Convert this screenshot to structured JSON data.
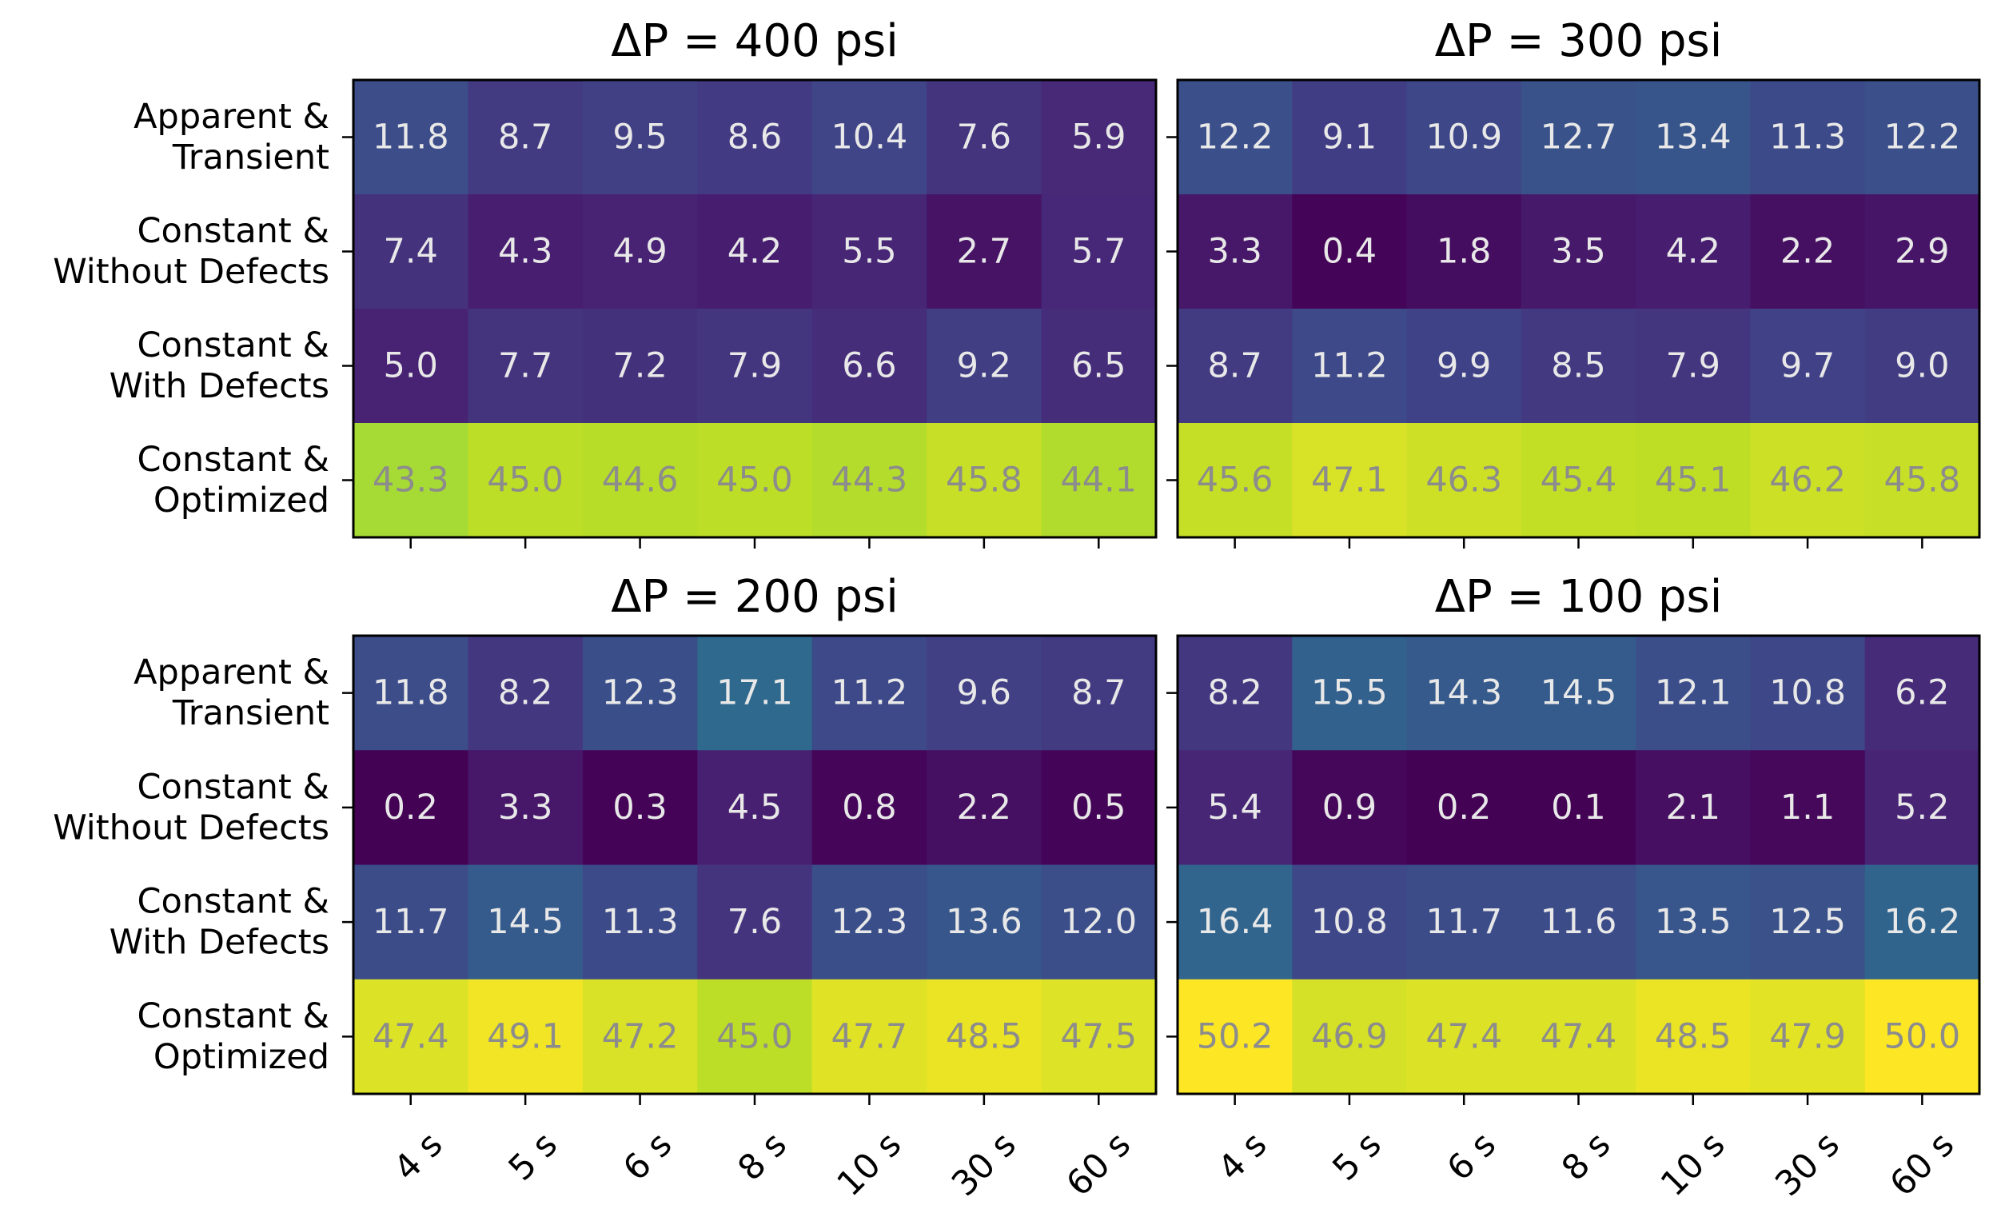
{
  "chart_data": [
    {
      "type": "heatmap",
      "title": "ΔP = 400 psi",
      "rows": [
        "Apparent & Transient",
        "Constant & Without Defects",
        "Constant & With Defects",
        "Constant & Optimized"
      ],
      "row_labels": [
        [
          "Apparent &",
          "Transient"
        ],
        [
          "Constant &",
          "Without Defects"
        ],
        [
          "Constant &",
          "With Defects"
        ],
        [
          "Constant &",
          "Optimized"
        ]
      ],
      "columns": [
        "4 s",
        "5 s",
        "6 s",
        "8 s",
        "10 s",
        "30 s",
        "60 s"
      ],
      "show_x_tick_labels": false,
      "values": [
        [
          11.8,
          8.7,
          9.5,
          8.6,
          10.4,
          7.6,
          5.9
        ],
        [
          7.4,
          4.3,
          4.9,
          4.2,
          5.5,
          2.7,
          5.7
        ],
        [
          5.0,
          7.7,
          7.2,
          7.9,
          6.6,
          9.2,
          6.5
        ],
        [
          43.3,
          45.0,
          44.6,
          45.0,
          44.3,
          45.8,
          44.1
        ]
      ]
    },
    {
      "type": "heatmap",
      "title": "ΔP = 300 psi",
      "rows": [
        "Apparent & Transient",
        "Constant & Without Defects",
        "Constant & With Defects",
        "Constant & Optimized"
      ],
      "row_labels": [],
      "columns": [
        "4 s",
        "5 s",
        "6 s",
        "8 s",
        "10 s",
        "30 s",
        "60 s"
      ],
      "show_x_tick_labels": false,
      "values": [
        [
          12.2,
          9.1,
          10.9,
          12.7,
          13.4,
          11.3,
          12.2
        ],
        [
          3.3,
          0.4,
          1.8,
          3.5,
          4.2,
          2.2,
          2.9
        ],
        [
          8.7,
          11.2,
          9.9,
          8.5,
          7.9,
          9.7,
          9.0
        ],
        [
          45.6,
          47.1,
          46.3,
          45.4,
          45.1,
          46.2,
          45.8
        ]
      ]
    },
    {
      "type": "heatmap",
      "title": "ΔP = 200 psi",
      "rows": [
        "Apparent & Transient",
        "Constant & Without Defects",
        "Constant & With Defects",
        "Constant & Optimized"
      ],
      "row_labels": [
        [
          "Apparent &",
          "Transient"
        ],
        [
          "Constant &",
          "Without Defects"
        ],
        [
          "Constant &",
          "With Defects"
        ],
        [
          "Constant &",
          "Optimized"
        ]
      ],
      "columns": [
        "4 s",
        "5 s",
        "6 s",
        "8 s",
        "10 s",
        "30 s",
        "60 s"
      ],
      "show_x_tick_labels": true,
      "values": [
        [
          11.8,
          8.2,
          12.3,
          17.1,
          11.2,
          9.6,
          8.7
        ],
        [
          0.2,
          3.3,
          0.3,
          4.5,
          0.8,
          2.2,
          0.5
        ],
        [
          11.7,
          14.5,
          11.3,
          7.6,
          12.3,
          13.6,
          12.0
        ],
        [
          47.4,
          49.1,
          47.2,
          45.0,
          47.7,
          48.5,
          47.5
        ]
      ]
    },
    {
      "type": "heatmap",
      "title": "ΔP = 100 psi",
      "rows": [
        "Apparent & Transient",
        "Constant & Without Defects",
        "Constant & With Defects",
        "Constant & Optimized"
      ],
      "row_labels": [],
      "columns": [
        "4 s",
        "5 s",
        "6 s",
        "8 s",
        "10 s",
        "30 s",
        "60 s"
      ],
      "show_x_tick_labels": true,
      "values": [
        [
          8.2,
          15.5,
          14.3,
          14.5,
          12.1,
          10.8,
          6.2
        ],
        [
          5.4,
          0.9,
          0.2,
          0.1,
          2.1,
          1.1,
          5.2
        ],
        [
          16.4,
          10.8,
          11.7,
          11.6,
          13.5,
          12.5,
          16.2
        ],
        [
          50.2,
          46.9,
          47.4,
          47.4,
          48.5,
          47.9,
          50.0
        ]
      ]
    }
  ],
  "colormap": "viridis",
  "color_range": [
    0,
    50
  ],
  "colors": {
    "text_on_dark": "#e8e8e8",
    "text_on_light": "#8c8c8c",
    "axis": "#000000"
  }
}
